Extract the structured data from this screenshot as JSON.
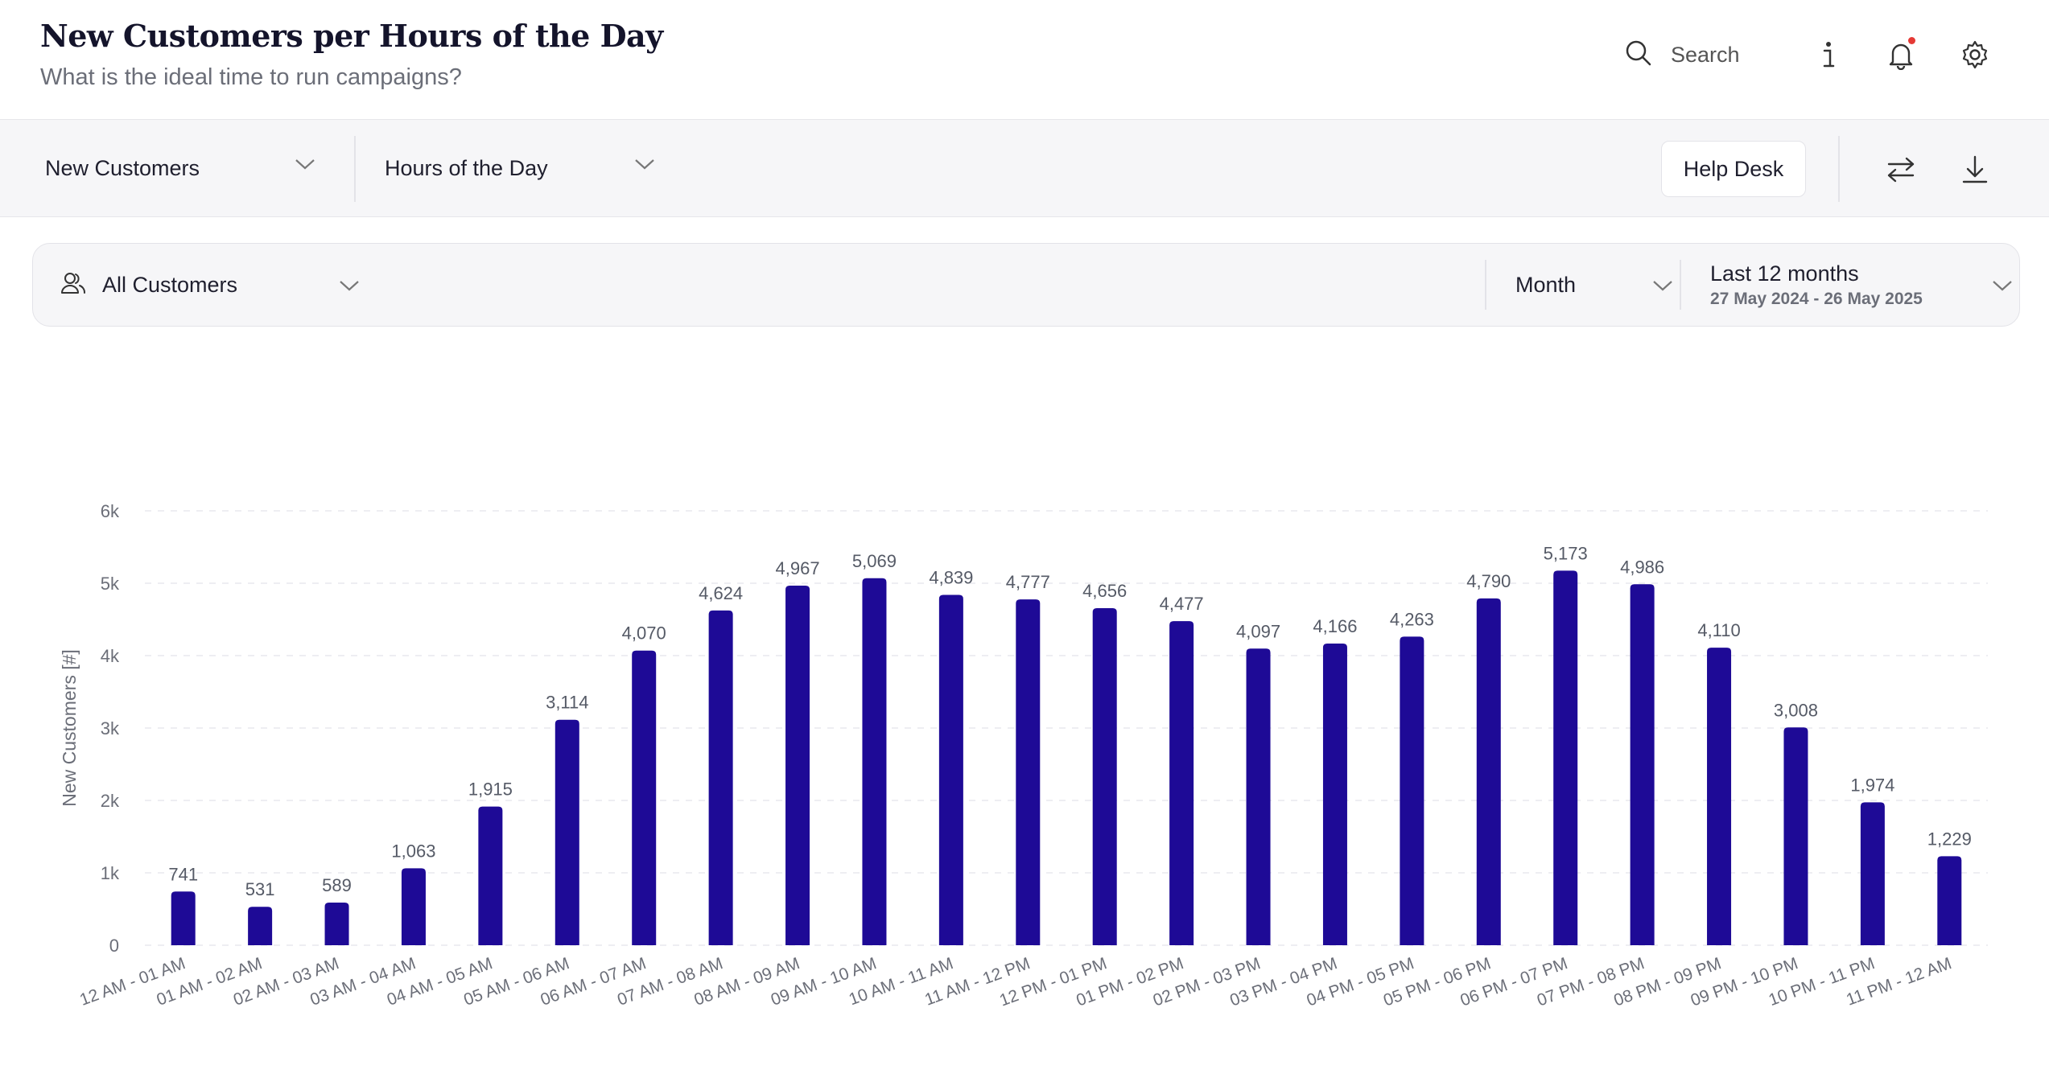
{
  "header": {
    "title": "New Customers per Hours of the Day",
    "subtitle": "What is the ideal time to run campaigns?",
    "search_label": "Search"
  },
  "toolbar": {
    "metric_select": "New Customers",
    "dimension_select": "Hours of the Day",
    "help_desk_label": "Help Desk"
  },
  "filters": {
    "segment": "All Customers",
    "granularity": "Month",
    "range_label": "Last 12 months",
    "range_dates": "27 May 2024 - 26 May 2025"
  },
  "colors": {
    "bar": "#1e0a96",
    "grid": "#e9e9ee",
    "tick": "#6b6e78",
    "label": "#555a66"
  },
  "chart_data": {
    "type": "bar",
    "title": "",
    "xlabel": "",
    "ylabel": "New Customers [#]",
    "ylim": [
      0,
      6000
    ],
    "yticks": [
      0,
      1000,
      2000,
      3000,
      4000,
      5000,
      6000
    ],
    "ytick_labels": [
      "0",
      "1k",
      "2k",
      "3k",
      "4k",
      "5k",
      "6k"
    ],
    "grid": true,
    "categories": [
      "12 AM - 01 AM",
      "01 AM - 02 AM",
      "02 AM - 03 AM",
      "03 AM - 04 AM",
      "04 AM - 05 AM",
      "05 AM - 06 AM",
      "06 AM - 07 AM",
      "07 AM - 08 AM",
      "08 AM - 09 AM",
      "09 AM - 10 AM",
      "10 AM - 11 AM",
      "11 AM - 12 PM",
      "12 PM - 01 PM",
      "01 PM - 02 PM",
      "02 PM - 03 PM",
      "03 PM - 04 PM",
      "04 PM - 05 PM",
      "05 PM - 06 PM",
      "06 PM - 07 PM",
      "07 PM - 08 PM",
      "08 PM - 09 PM",
      "09 PM - 10 PM",
      "10 PM - 11 PM",
      "11 PM - 12 AM"
    ],
    "values": [
      741,
      531,
      589,
      1063,
      1915,
      3114,
      4070,
      4624,
      4967,
      5069,
      4839,
      4777,
      4656,
      4477,
      4097,
      4166,
      4263,
      4790,
      5173,
      4986,
      4110,
      3008,
      1974,
      1229
    ],
    "value_labels": [
      "741",
      "531",
      "589",
      "1,063",
      "1,915",
      "3,114",
      "4,070",
      "4,624",
      "4,967",
      "5,069",
      "4,839",
      "4,777",
      "4,656",
      "4,477",
      "4,097",
      "4,166",
      "4,263",
      "4,790",
      "5,173",
      "4,986",
      "4,110",
      "3,008",
      "1,974",
      "1,229"
    ]
  }
}
